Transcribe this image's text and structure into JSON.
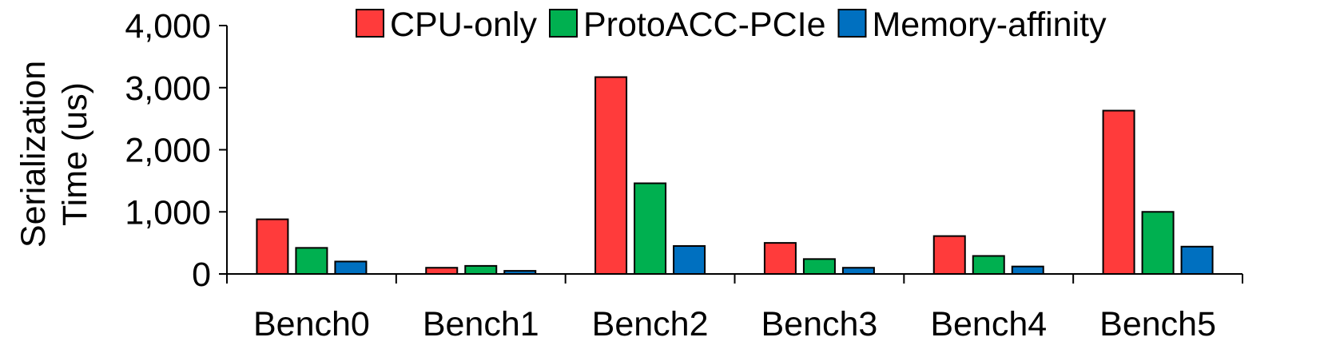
{
  "chart_data": {
    "type": "bar",
    "categories": [
      "Bench0",
      "Bench1",
      "Bench2",
      "Bench3",
      "Bench4",
      "Bench5"
    ],
    "series": [
      {
        "name": "CPU-only",
        "color": "#ff3b3b",
        "values": [
          880,
          100,
          3170,
          500,
          610,
          2630
        ]
      },
      {
        "name": "ProtoACC-PCIe",
        "color": "#00b050",
        "values": [
          420,
          130,
          1460,
          240,
          290,
          1000
        ]
      },
      {
        "name": "Memory-affinity",
        "color": "#0070c0",
        "values": [
          200,
          50,
          450,
          100,
          120,
          440
        ]
      }
    ],
    "ylabel_lines": [
      "Serialization",
      "Time (us)"
    ],
    "xlabel": "",
    "ylim": [
      0,
      4000
    ],
    "yticks": [
      0,
      1000,
      2000,
      3000,
      4000
    ],
    "ytick_labels": [
      "0",
      "1,000",
      "2,000",
      "3,000",
      "4,000"
    ],
    "legend_position": "top",
    "grid": false
  }
}
